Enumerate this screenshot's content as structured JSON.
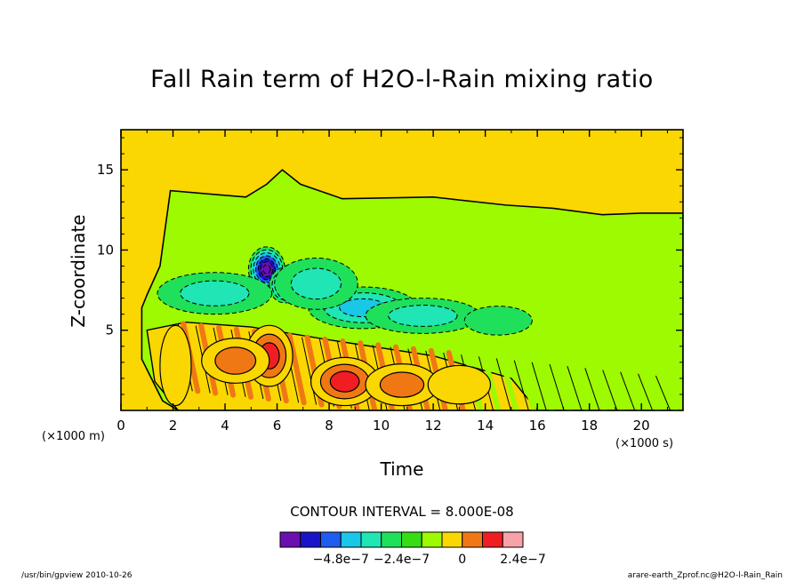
{
  "chart_data": {
    "type": "heatmap",
    "title": "Fall Rain term of H2O-l-Rain mixing ratio",
    "xlabel": "Time",
    "ylabel": "Z-coordinate",
    "x_unit": "(×1000 s)",
    "y_unit": "(×1000 m)",
    "xlim": [
      0,
      21.6
    ],
    "ylim": [
      0,
      17.5
    ],
    "x_ticks": [
      0,
      2,
      4,
      6,
      8,
      10,
      12,
      14,
      16,
      18,
      20
    ],
    "x_tick_labels": [
      "0",
      "2",
      "4",
      "6",
      "8",
      "10",
      "12",
      "14",
      "16",
      "18",
      "20"
    ],
    "y_ticks": [
      5,
      10,
      15
    ],
    "y_tick_labels": [
      "5",
      "10",
      "15"
    ],
    "contour_interval": "CONTOUR INTERVAL = 8.000E-08",
    "colorbar": {
      "colors": [
        "#6a0fb0",
        "#1a14c8",
        "#1f5cf0",
        "#19c7e6",
        "#1fe6b4",
        "#1fe05a",
        "#36dc14",
        "#9efa00",
        "#fad700",
        "#f07814",
        "#f01e23",
        "#f7a1a8"
      ],
      "tick_labels": [
        "−4.8e−7",
        "−2.4e−7",
        "0",
        "2.4e−7"
      ],
      "tick_boundary_index": [
        3,
        6,
        9,
        12
      ]
    },
    "field": {
      "background": 0,
      "rain_top": [
        [
          0.8,
          6.4
        ],
        [
          1.0,
          7.2
        ],
        [
          1.5,
          9.0
        ],
        [
          1.9,
          13.7
        ],
        [
          4.8,
          13.3
        ],
        [
          5.6,
          14.1
        ],
        [
          6.2,
          15.0
        ],
        [
          6.9,
          14.1
        ],
        [
          8.5,
          13.2
        ],
        [
          12.0,
          13.3
        ],
        [
          14.8,
          12.8
        ],
        [
          16.6,
          12.6
        ],
        [
          18.5,
          12.2
        ],
        [
          20.0,
          12.3
        ],
        [
          21.6,
          12.3
        ]
      ],
      "rain_bottom": [
        [
          0.8,
          3.2
        ],
        [
          1.6,
          0.6
        ],
        [
          2.2,
          0.0
        ],
        [
          21.6,
          0.0
        ]
      ],
      "negative_cells": [
        {
          "t": 5.6,
          "z": 8.8,
          "dt": 0.7,
          "dz": 1.4,
          "value": -5.2e-07
        },
        {
          "t": 6.3,
          "z": 7.8,
          "dt": 0.6,
          "dz": 1.1,
          "value": -3.8e-07
        },
        {
          "t": 3.6,
          "z": 7.3,
          "dt": 2.2,
          "dz": 1.3,
          "value": -1.9e-07
        },
        {
          "t": 9.3,
          "z": 6.4,
          "dt": 2.1,
          "dz": 1.3,
          "value": -2.7e-07
        },
        {
          "t": 11.6,
          "z": 5.9,
          "dt": 2.2,
          "dz": 1.1,
          "value": -1.4e-07
        },
        {
          "t": 14.5,
          "z": 5.6,
          "dt": 1.3,
          "dz": 0.9,
          "value": -8e-08
        },
        {
          "t": 7.5,
          "z": 7.9,
          "dt": 1.6,
          "dz": 1.6,
          "value": -1.5e-07
        }
      ],
      "positive_cells": [
        {
          "t": 5.7,
          "z": 3.4,
          "dt": 0.9,
          "dz": 1.9,
          "value": 2.6e-07
        },
        {
          "t": 4.4,
          "z": 3.1,
          "dt": 1.3,
          "dz": 1.4,
          "value": 1.4e-07
        },
        {
          "t": 2.1,
          "z": 2.8,
          "dt": 0.6,
          "dz": 2.5,
          "value": 1.2e-07
        },
        {
          "t": 8.6,
          "z": 1.8,
          "dt": 1.3,
          "dz": 1.5,
          "value": 2.2e-07
        },
        {
          "t": 10.8,
          "z": 1.6,
          "dt": 1.4,
          "dz": 1.3,
          "value": 1.3e-07
        },
        {
          "t": 13.0,
          "z": 1.6,
          "dt": 1.2,
          "dz": 1.2,
          "value": 6e-08
        }
      ]
    }
  },
  "footer": {
    "left": "/usr/bin/gpview  2010-10-26",
    "right": "arare-earth_Zprof.nc@H2O-l-Rain_Rain"
  }
}
